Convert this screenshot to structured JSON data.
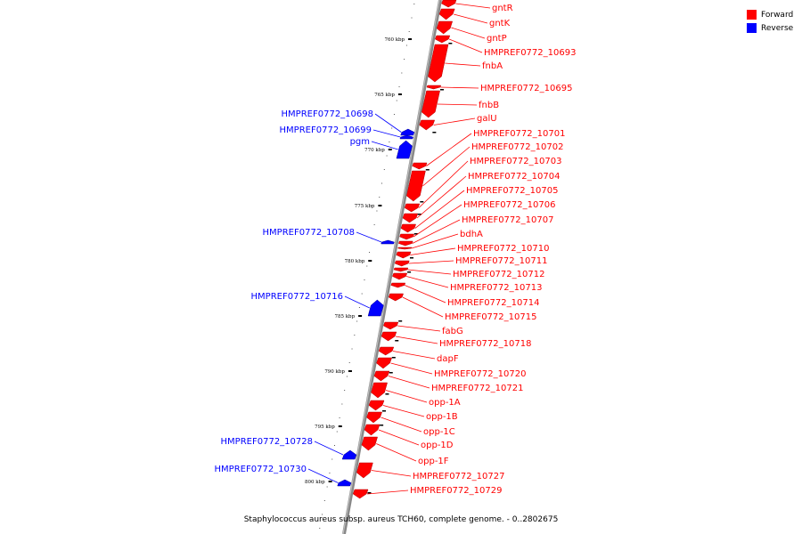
{
  "legend": {
    "forward_label": "Forward",
    "reverse_label": "Reverse",
    "forward_color": "#ff0000",
    "reverse_color": "#0000ff"
  },
  "caption": "Staphylococcus aureus subsp. aureus TCH60, complete genome. - 0..2802675",
  "scale_ticks": [
    "760 kbp",
    "765 kbp",
    "770 kbp",
    "775 kbp",
    "780 kbp",
    "785 kbp",
    "790 kbp",
    "795 kbp",
    "800 kbp"
  ],
  "forward_genes": [
    "gntR",
    "gntK",
    "gntP",
    "HMPREF0772_10693",
    "fnbA",
    "HMPREF0772_10695",
    "fnbB",
    "galU",
    "HMPREF0772_10701",
    "HMPREF0772_10702",
    "HMPREF0772_10703",
    "HMPREF0772_10704",
    "HMPREF0772_10705",
    "HMPREF0772_10706",
    "HMPREF0772_10707",
    "bdhA",
    "HMPREF0772_10710",
    "HMPREF0772_10711",
    "HMPREF0772_10712",
    "HMPREF0772_10713",
    "HMPREF0772_10714",
    "HMPREF0772_10715",
    "fabG",
    "HMPREF0772_10718",
    "dapF",
    "HMPREF0772_10720",
    "HMPREF0772_10721",
    "opp-1A",
    "opp-1B",
    "opp-1C",
    "opp-1D",
    "opp-1F",
    "HMPREF0772_10727",
    "HMPREF0772_10729"
  ],
  "reverse_genes": [
    "HMPREF0772_10698",
    "HMPREF0772_10699",
    "pgm",
    "HMPREF0772_10708",
    "HMPREF0772_10716",
    "HMPREF0772_10728",
    "HMPREF0772_10730"
  ]
}
